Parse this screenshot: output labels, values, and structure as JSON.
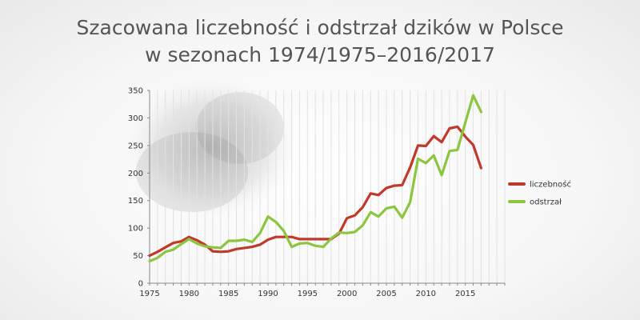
{
  "title": {
    "line1": "Szacowana liczebność i odstrzał dzików w Polsce",
    "line2": "w sezonach 1974/1975–2016/2017"
  },
  "chart_data": {
    "type": "line",
    "xlim": [
      1975,
      2020
    ],
    "ylim": [
      0,
      350
    ],
    "x_ticks": [
      1975,
      1980,
      1985,
      1990,
      1995,
      2000,
      2005,
      2010,
      2015
    ],
    "y_ticks": [
      0,
      50,
      100,
      150,
      200,
      250,
      300,
      350
    ],
    "grid": "vertical",
    "legend_position": "right",
    "x": [
      1975,
      1976,
      1977,
      1978,
      1979,
      1980,
      1981,
      1982,
      1983,
      1984,
      1985,
      1986,
      1987,
      1988,
      1989,
      1990,
      1991,
      1992,
      1993,
      1994,
      1995,
      1996,
      1997,
      1998,
      1999,
      2000,
      2001,
      2002,
      2003,
      2004,
      2005,
      2006,
      2007,
      2008,
      2009,
      2010,
      2011,
      2012,
      2013,
      2014,
      2015,
      2016,
      2017
    ],
    "series": [
      {
        "name": "liczebność",
        "color": "#c0392b",
        "values": [
          50,
          57,
          65,
          73,
          76,
          84,
          78,
          70,
          58,
          57,
          58,
          62,
          64,
          66,
          70,
          79,
          84,
          84,
          84,
          80,
          80,
          80,
          80,
          80,
          90,
          118,
          123,
          138,
          163,
          160,
          173,
          177,
          178,
          210,
          250,
          249,
          267,
          256,
          281,
          284,
          266,
          251,
          209
        ]
      },
      {
        "name": "odstrzał",
        "color": "#8cc63f",
        "values": [
          40,
          46,
          57,
          61,
          71,
          80,
          72,
          67,
          65,
          64,
          77,
          77,
          79,
          75,
          91,
          121,
          111,
          95,
          66,
          72,
          73,
          68,
          66,
          81,
          92,
          91,
          93,
          105,
          129,
          121,
          136,
          139,
          119,
          147,
          226,
          218,
          232,
          196,
          240,
          242,
          292,
          341,
          311
        ]
      }
    ]
  }
}
